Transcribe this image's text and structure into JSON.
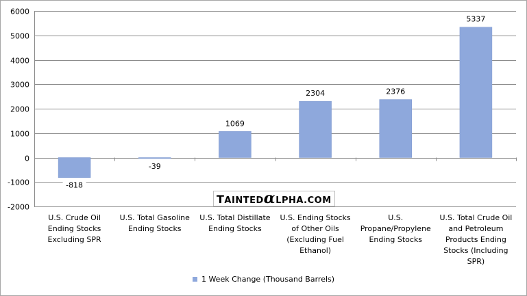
{
  "chart_data": {
    "type": "bar",
    "categories": [
      "U.S. Crude Oil Ending Stocks Excluding SPR",
      "U.S. Total Gasoline Ending Stocks",
      "U.S. Total Distillate Ending Stocks",
      "U.S. Ending Stocks of Other Oils (Excluding Fuel Ethanol)",
      "U.S. Propane/Propylene Ending Stocks",
      "U.S. Total Crude Oil and Petroleum Products Ending Stocks (Including SPR)"
    ],
    "series": [
      {
        "name": "1 Week Change (Thousand Barrels)",
        "values": [
          -818,
          -39,
          1069,
          2304,
          2376,
          5337
        ],
        "data_labels": [
          "-818",
          "-39",
          "1069",
          "2304",
          "2376",
          "5337"
        ]
      }
    ],
    "ylim": [
      -2000,
      6000
    ],
    "yticks": [
      6000,
      5000,
      4000,
      3000,
      2000,
      1000,
      0,
      -1000,
      -2000
    ],
    "grid": true,
    "legend_position": "bottom",
    "bar_color": "#8ea8dc"
  },
  "watermark": "TaintedAlpha.com"
}
